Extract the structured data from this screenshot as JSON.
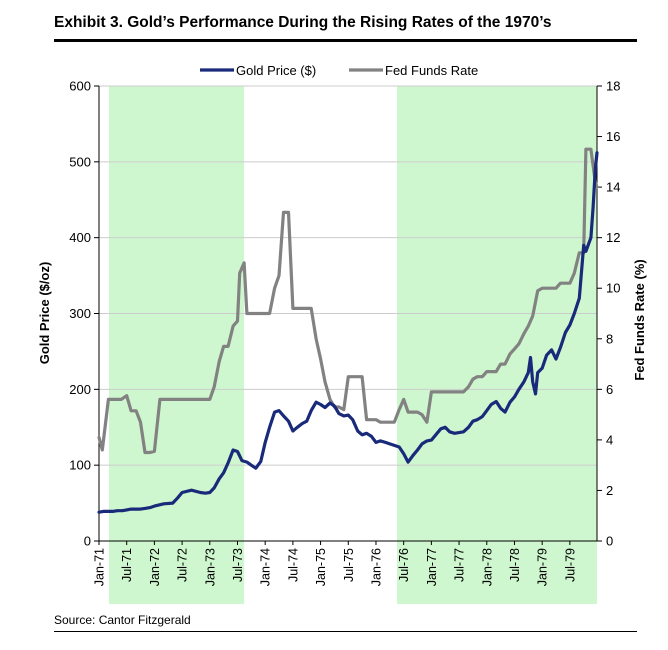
{
  "exhibit": {
    "title": "Exhibit 3. Gold’s Performance During the Rising Rates of the 1970’s",
    "source": "Source: Cantor Fitzgerald"
  },
  "colors": {
    "gold": "#1a2a7a",
    "fed": "#828282",
    "shade": "#cff7cf",
    "grid": "#cccccc"
  },
  "chart_data": {
    "type": "line",
    "title": "Exhibit 3. Gold’s Performance During the Rising Rates of the 1970’s",
    "y_left": {
      "label": "Gold Price ($/oz)",
      "range": [
        0,
        600
      ],
      "ticks": [
        0,
        100,
        200,
        300,
        400,
        500,
        600
      ]
    },
    "y_right": {
      "label": "Fed Funds Rate (%)",
      "range": [
        0,
        18
      ],
      "ticks": [
        0,
        2,
        4,
        6,
        8,
        10,
        12,
        14,
        16,
        18
      ]
    },
    "x_range": [
      1971.0,
      1979.99
    ],
    "x_ticks": [
      {
        "label": "Jan-71",
        "t": 1971.0
      },
      {
        "label": "Jul-71",
        "t": 1971.5
      },
      {
        "label": "Jan-72",
        "t": 1972.0
      },
      {
        "label": "Jul-72",
        "t": 1972.5
      },
      {
        "label": "Jan-73",
        "t": 1973.0
      },
      {
        "label": "Jul-73",
        "t": 1973.5
      },
      {
        "label": "Jan-74",
        "t": 1974.0
      },
      {
        "label": "Jul-74",
        "t": 1974.5
      },
      {
        "label": "Jan-75",
        "t": 1975.0
      },
      {
        "label": "Jul-75",
        "t": 1975.5
      },
      {
        "label": "Jan-76",
        "t": 1976.0
      },
      {
        "label": "Jul-76",
        "t": 1976.5
      },
      {
        "label": "Jan-77",
        "t": 1977.0
      },
      {
        "label": "Jul-77",
        "t": 1977.5
      },
      {
        "label": "Jan-78",
        "t": 1978.0
      },
      {
        "label": "Jul-78",
        "t": 1978.5
      },
      {
        "label": "Jan-79",
        "t": 1979.0
      },
      {
        "label": "Jul-79",
        "t": 1979.5
      }
    ],
    "shaded_periods": [
      [
        1971.0,
        1973.62
      ],
      [
        1976.2,
        1979.99
      ]
    ],
    "legend": {
      "position": "top-center",
      "entries": [
        "Gold Price ($)",
        "Fed Funds Rate"
      ]
    },
    "series": [
      {
        "name": "Gold Price ($)",
        "axis": "left",
        "points": [
          [
            1971.0,
            38
          ],
          [
            1971.08,
            39
          ],
          [
            1971.17,
            39
          ],
          [
            1971.25,
            39
          ],
          [
            1971.33,
            40
          ],
          [
            1971.42,
            40
          ],
          [
            1971.5,
            41
          ],
          [
            1971.58,
            42
          ],
          [
            1971.67,
            42
          ],
          [
            1971.75,
            42
          ],
          [
            1971.83,
            43
          ],
          [
            1971.92,
            44
          ],
          [
            1972.0,
            46
          ],
          [
            1972.17,
            49
          ],
          [
            1972.33,
            50
          ],
          [
            1972.42,
            57
          ],
          [
            1972.5,
            64
          ],
          [
            1972.67,
            67
          ],
          [
            1972.83,
            64
          ],
          [
            1972.92,
            63
          ],
          [
            1973.0,
            64
          ],
          [
            1973.08,
            70
          ],
          [
            1973.17,
            82
          ],
          [
            1973.25,
            90
          ],
          [
            1973.33,
            103
          ],
          [
            1973.42,
            120
          ],
          [
            1973.5,
            118
          ],
          [
            1973.58,
            106
          ],
          [
            1973.67,
            104
          ],
          [
            1973.75,
            100
          ],
          [
            1973.83,
            96
          ],
          [
            1973.92,
            105
          ],
          [
            1974.0,
            130
          ],
          [
            1974.08,
            150
          ],
          [
            1974.17,
            170
          ],
          [
            1974.25,
            172
          ],
          [
            1974.33,
            165
          ],
          [
            1974.42,
            158
          ],
          [
            1974.5,
            145
          ],
          [
            1974.58,
            150
          ],
          [
            1974.67,
            155
          ],
          [
            1974.75,
            158
          ],
          [
            1974.83,
            172
          ],
          [
            1974.92,
            183
          ],
          [
            1975.0,
            180
          ],
          [
            1975.08,
            176
          ],
          [
            1975.17,
            182
          ],
          [
            1975.25,
            178
          ],
          [
            1975.33,
            168
          ],
          [
            1975.42,
            165
          ],
          [
            1975.5,
            166
          ],
          [
            1975.58,
            160
          ],
          [
            1975.67,
            145
          ],
          [
            1975.75,
            140
          ],
          [
            1975.83,
            142
          ],
          [
            1975.92,
            138
          ],
          [
            1976.0,
            130
          ],
          [
            1976.08,
            132
          ],
          [
            1976.17,
            130
          ],
          [
            1976.25,
            128
          ],
          [
            1976.33,
            126
          ],
          [
            1976.42,
            124
          ],
          [
            1976.5,
            115
          ],
          [
            1976.58,
            104
          ],
          [
            1976.67,
            113
          ],
          [
            1976.75,
            120
          ],
          [
            1976.83,
            128
          ],
          [
            1976.92,
            132
          ],
          [
            1977.0,
            133
          ],
          [
            1977.08,
            140
          ],
          [
            1977.17,
            148
          ],
          [
            1977.25,
            150
          ],
          [
            1977.33,
            144
          ],
          [
            1977.42,
            142
          ],
          [
            1977.5,
            143
          ],
          [
            1977.58,
            144
          ],
          [
            1977.67,
            150
          ],
          [
            1977.75,
            158
          ],
          [
            1977.83,
            160
          ],
          [
            1977.92,
            164
          ],
          [
            1978.0,
            172
          ],
          [
            1978.08,
            180
          ],
          [
            1978.17,
            184
          ],
          [
            1978.25,
            175
          ],
          [
            1978.33,
            170
          ],
          [
            1978.42,
            183
          ],
          [
            1978.5,
            190
          ],
          [
            1978.58,
            200
          ],
          [
            1978.67,
            210
          ],
          [
            1978.75,
            222
          ],
          [
            1978.79,
            242
          ],
          [
            1978.83,
            210
          ],
          [
            1978.88,
            194
          ],
          [
            1978.92,
            222
          ],
          [
            1979.0,
            228
          ],
          [
            1979.08,
            245
          ],
          [
            1979.17,
            252
          ],
          [
            1979.25,
            240
          ],
          [
            1979.33,
            255
          ],
          [
            1979.42,
            275
          ],
          [
            1979.5,
            285
          ],
          [
            1979.58,
            300
          ],
          [
            1979.67,
            320
          ],
          [
            1979.75,
            390
          ],
          [
            1979.79,
            382
          ],
          [
            1979.83,
            390
          ],
          [
            1979.88,
            400
          ],
          [
            1979.92,
            440
          ],
          [
            1979.96,
            490
          ],
          [
            1979.99,
            512
          ]
        ]
      },
      {
        "name": "Fed Funds Rate",
        "axis": "right",
        "points": [
          [
            1971.0,
            4.1
          ],
          [
            1971.06,
            3.6
          ],
          [
            1971.17,
            5.6
          ],
          [
            1971.25,
            5.6
          ],
          [
            1971.4,
            5.6
          ],
          [
            1971.5,
            5.75
          ],
          [
            1971.58,
            5.15
          ],
          [
            1971.67,
            5.15
          ],
          [
            1971.75,
            4.7
          ],
          [
            1971.83,
            3.5
          ],
          [
            1971.92,
            3.5
          ],
          [
            1972.0,
            3.55
          ],
          [
            1972.1,
            5.6
          ],
          [
            1972.17,
            5.6
          ],
          [
            1972.33,
            5.6
          ],
          [
            1972.5,
            5.6
          ],
          [
            1972.67,
            5.6
          ],
          [
            1972.83,
            5.6
          ],
          [
            1972.92,
            5.6
          ],
          [
            1973.0,
            5.6
          ],
          [
            1973.08,
            6.1
          ],
          [
            1973.17,
            7.1
          ],
          [
            1973.25,
            7.7
          ],
          [
            1973.33,
            7.7
          ],
          [
            1973.42,
            8.5
          ],
          [
            1973.5,
            8.7
          ],
          [
            1973.54,
            10.6
          ],
          [
            1973.62,
            11.0
          ],
          [
            1973.67,
            9.0
          ],
          [
            1973.75,
            9.0
          ],
          [
            1973.83,
            9.0
          ],
          [
            1974.0,
            9.0
          ],
          [
            1974.08,
            9.0
          ],
          [
            1974.17,
            10.0
          ],
          [
            1974.25,
            10.5
          ],
          [
            1974.33,
            13.0
          ],
          [
            1974.42,
            13.0
          ],
          [
            1974.5,
            9.2
          ],
          [
            1974.58,
            9.2
          ],
          [
            1974.67,
            9.2
          ],
          [
            1974.75,
            9.2
          ],
          [
            1974.83,
            9.2
          ],
          [
            1974.92,
            8.0
          ],
          [
            1975.0,
            7.2
          ],
          [
            1975.08,
            6.3
          ],
          [
            1975.17,
            5.6
          ],
          [
            1975.25,
            5.3
          ],
          [
            1975.33,
            5.3
          ],
          [
            1975.42,
            5.2
          ],
          [
            1975.5,
            6.5
          ],
          [
            1975.58,
            6.5
          ],
          [
            1975.67,
            6.5
          ],
          [
            1975.75,
            6.5
          ],
          [
            1975.83,
            4.8
          ],
          [
            1975.92,
            4.8
          ],
          [
            1976.0,
            4.8
          ],
          [
            1976.08,
            4.7
          ],
          [
            1976.17,
            4.7
          ],
          [
            1976.25,
            4.7
          ],
          [
            1976.33,
            4.7
          ],
          [
            1976.42,
            5.2
          ],
          [
            1976.5,
            5.6
          ],
          [
            1976.58,
            5.1
          ],
          [
            1976.67,
            5.1
          ],
          [
            1976.75,
            5.1
          ],
          [
            1976.83,
            5.0
          ],
          [
            1976.92,
            4.7
          ],
          [
            1977.0,
            5.9
          ],
          [
            1977.08,
            5.9
          ],
          [
            1977.17,
            5.9
          ],
          [
            1977.25,
            5.9
          ],
          [
            1977.33,
            5.9
          ],
          [
            1977.42,
            5.9
          ],
          [
            1977.5,
            5.9
          ],
          [
            1977.58,
            5.9
          ],
          [
            1977.67,
            6.1
          ],
          [
            1977.75,
            6.4
          ],
          [
            1977.83,
            6.5
          ],
          [
            1977.92,
            6.5
          ],
          [
            1978.0,
            6.7
          ],
          [
            1978.08,
            6.7
          ],
          [
            1978.17,
            6.7
          ],
          [
            1978.25,
            7.0
          ],
          [
            1978.33,
            7.0
          ],
          [
            1978.42,
            7.4
          ],
          [
            1978.5,
            7.6
          ],
          [
            1978.58,
            7.8
          ],
          [
            1978.67,
            8.2
          ],
          [
            1978.75,
            8.5
          ],
          [
            1978.83,
            8.9
          ],
          [
            1978.92,
            9.9
          ],
          [
            1979.0,
            10.0
          ],
          [
            1979.08,
            10.0
          ],
          [
            1979.17,
            10.0
          ],
          [
            1979.25,
            10.0
          ],
          [
            1979.33,
            10.2
          ],
          [
            1979.42,
            10.2
          ],
          [
            1979.5,
            10.2
          ],
          [
            1979.58,
            10.6
          ],
          [
            1979.67,
            11.4
          ],
          [
            1979.75,
            11.4
          ],
          [
            1979.79,
            15.5
          ],
          [
            1979.88,
            15.5
          ],
          [
            1979.96,
            14.2
          ],
          [
            1979.99,
            14.0
          ]
        ]
      }
    ]
  }
}
